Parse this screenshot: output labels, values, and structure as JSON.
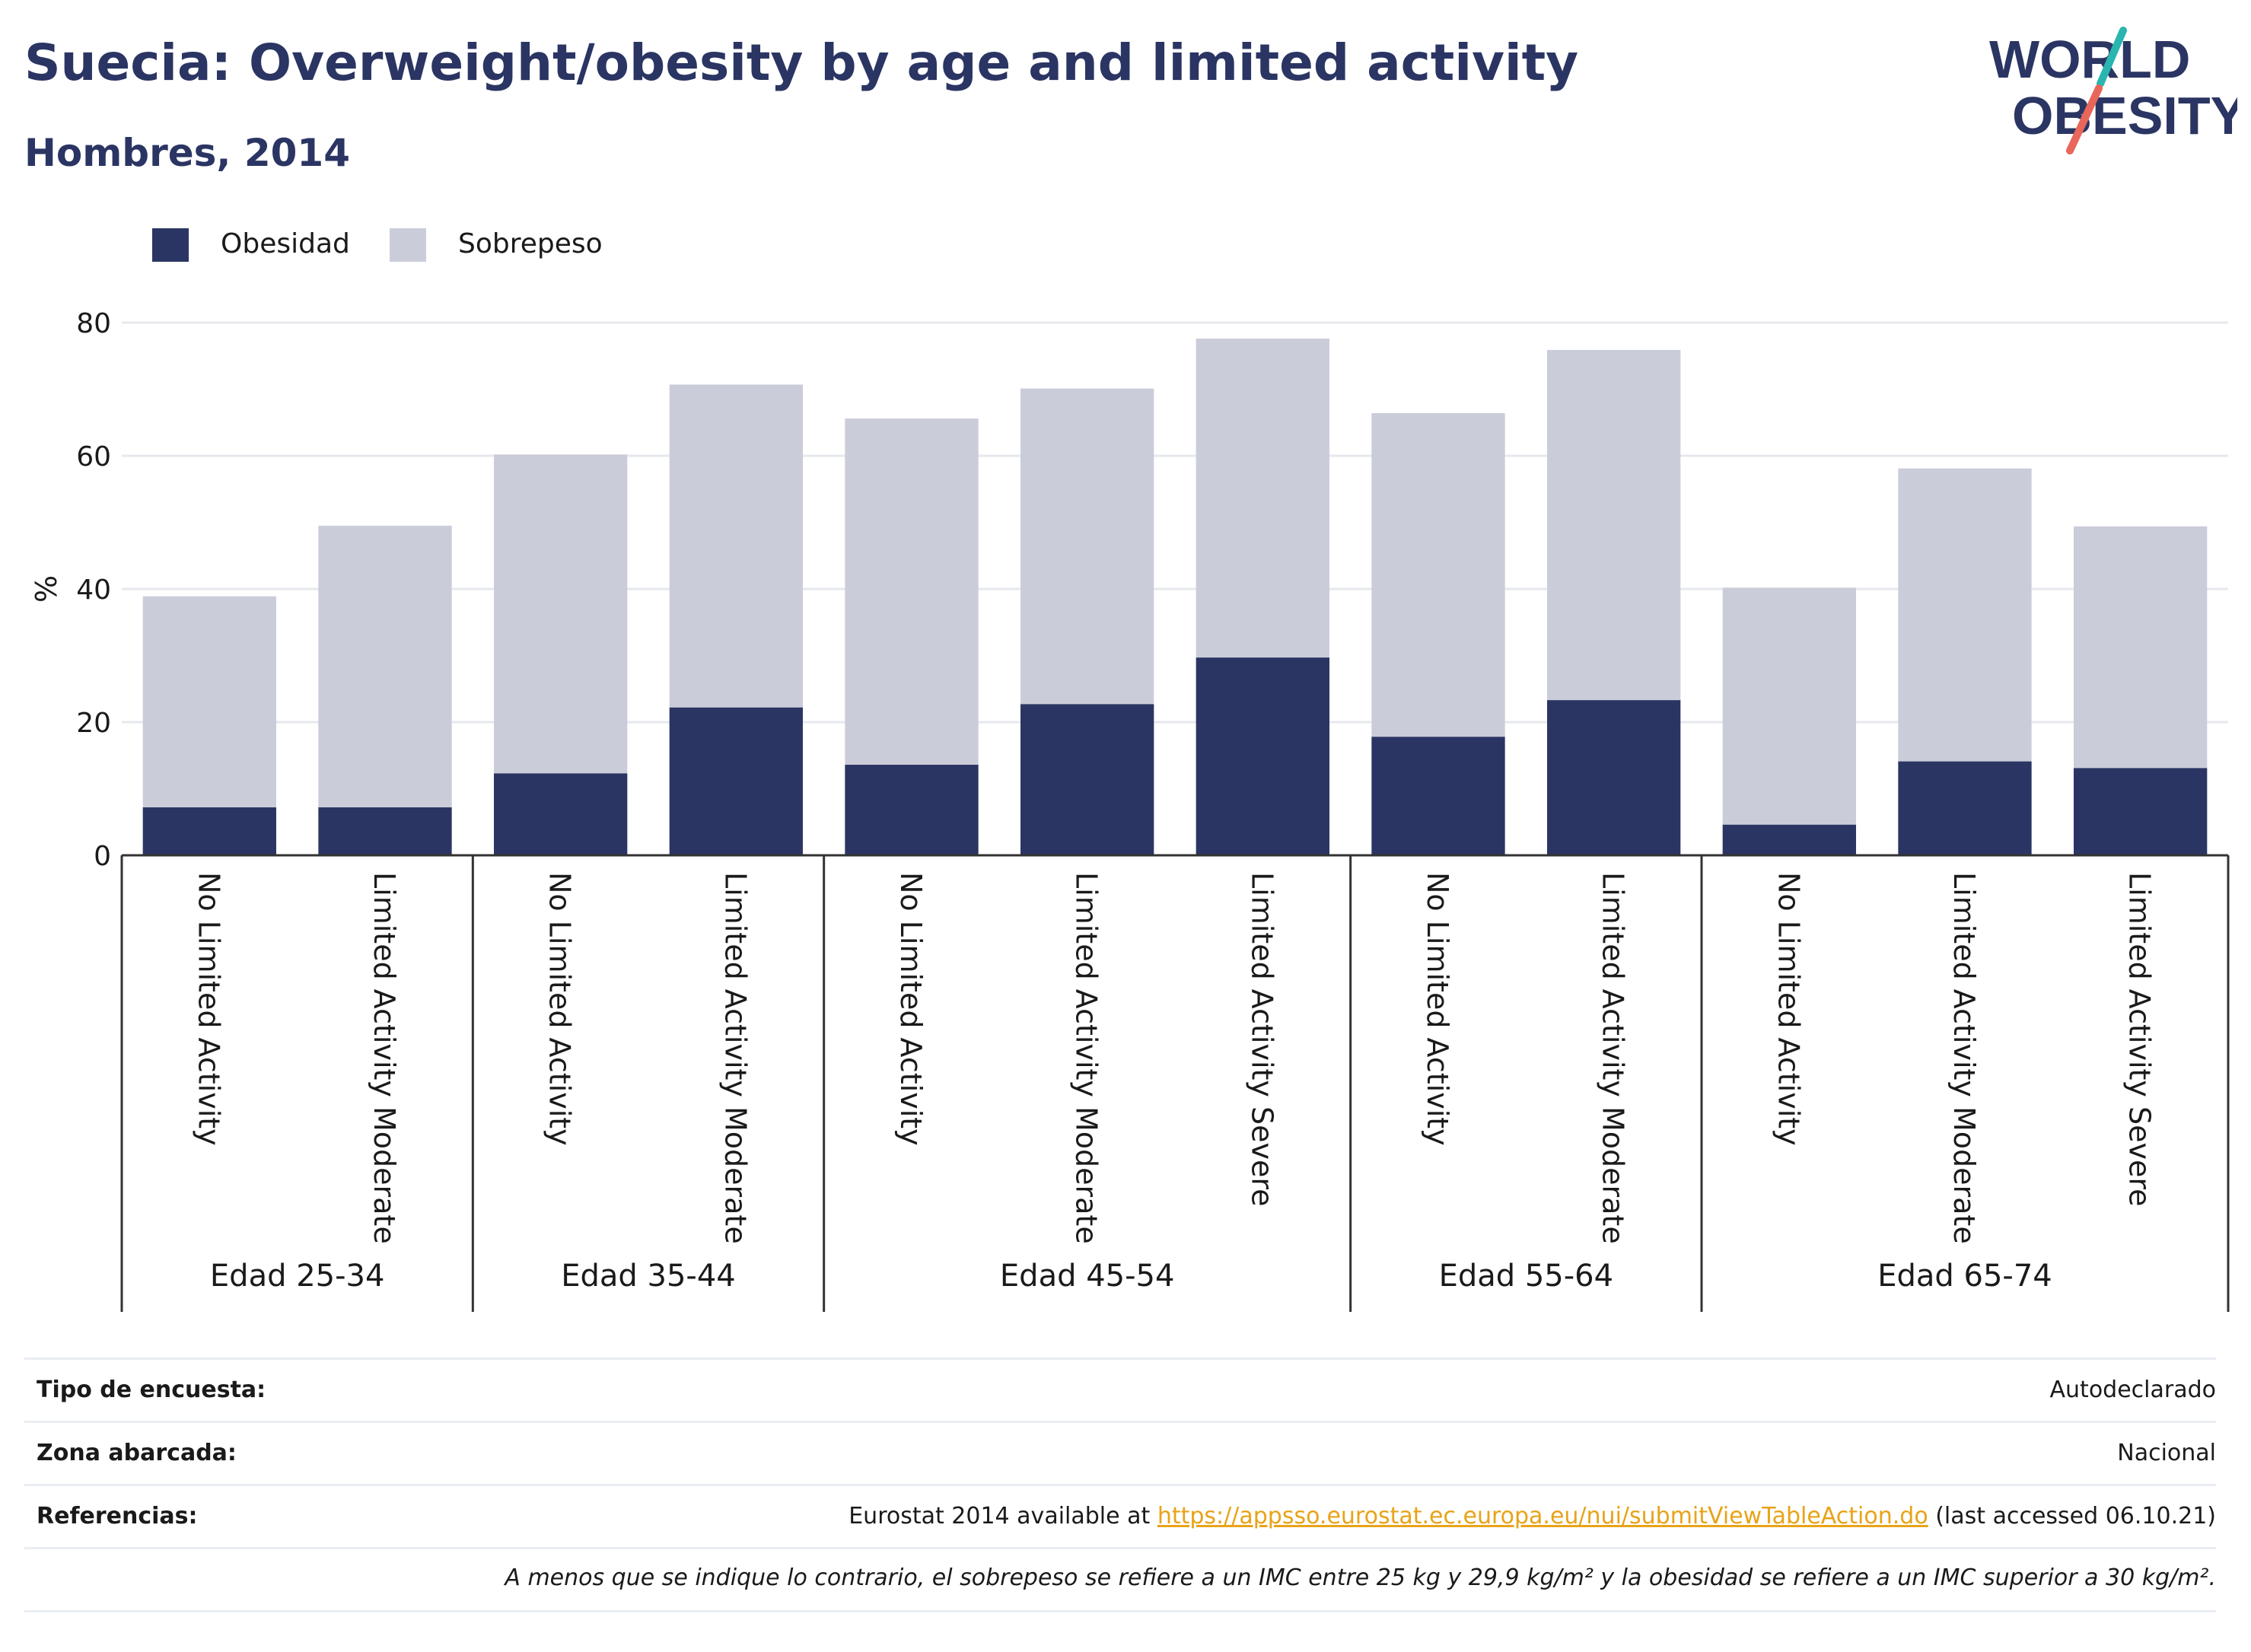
{
  "header": {
    "title": "Suecia: Overweight/obesity by age and limited activity",
    "subtitle": "Hombres, 2014"
  },
  "logo": {
    "line1": "WORLD",
    "line2": "OBESITY"
  },
  "colors": {
    "obesity": "#2b3563",
    "overweight": "#cacdd9",
    "accent_teal": "#2ab5b0",
    "accent_coral": "#e8665a",
    "link": "#e8a317"
  },
  "legend": [
    {
      "label": "Obesidad",
      "color": "#2b3563"
    },
    {
      "label": "Sobrepeso",
      "color": "#cacdd9"
    }
  ],
  "chart_data": {
    "type": "bar",
    "stacked": true,
    "ylabel": "%",
    "ylim": [
      0,
      80
    ],
    "yticks": [
      0,
      20,
      40,
      60,
      80
    ],
    "grid": true,
    "legend_position": "top-left",
    "groups": [
      {
        "label": "Edad 25-34",
        "categories": [
          "No Limited Activity",
          "Limited Activity Moderate"
        ]
      },
      {
        "label": "Edad 35-44",
        "categories": [
          "No Limited Activity",
          "Limited Activity Moderate"
        ]
      },
      {
        "label": "Edad 45-54",
        "categories": [
          "No Limited Activity",
          "Limited Activity Moderate",
          "Limited Activity Severe"
        ]
      },
      {
        "label": "Edad 55-64",
        "categories": [
          "No Limited Activity",
          "Limited Activity Moderate"
        ]
      },
      {
        "label": "Edad 65-74",
        "categories": [
          "No Limited Activity",
          "Limited Activity Moderate",
          "Limited Activity Severe"
        ]
      }
    ],
    "series": [
      {
        "name": "Obesidad",
        "values": [
          7.2,
          7.2,
          12.3,
          22.2,
          13.6,
          22.7,
          29.7,
          17.8,
          23.3,
          4.6,
          14.1,
          13.1
        ]
      },
      {
        "name": "Sobrepeso",
        "values": [
          31.7,
          42.3,
          47.9,
          48.5,
          52.0,
          47.4,
          47.9,
          48.6,
          52.6,
          35.6,
          44.0,
          36.3
        ]
      }
    ]
  },
  "info": {
    "rows": [
      {
        "key": "Tipo de encuesta:",
        "value": "Autodeclarado"
      },
      {
        "key": "Zona abarcada:",
        "value": "Nacional"
      },
      {
        "key": "Referencias:",
        "value_pre": "Eurostat 2014 available at ",
        "link": "https://appsso.eurostat.ec.europa.eu/nui/submitViewTableAction.do",
        "value_post": " (last accessed 06.10.21)"
      }
    ],
    "note": "A menos que se indique lo contrario, el sobrepeso se refiere a un IMC entre 25 kg y 29,9 kg/m² y la obesidad se refiere a un IMC superior a 30 kg/m²."
  }
}
